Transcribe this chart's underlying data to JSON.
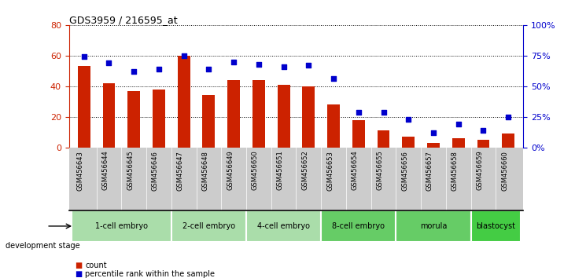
{
  "title": "GDS3959 / 216595_at",
  "categories": [
    "GSM456643",
    "GSM456644",
    "GSM456645",
    "GSM456646",
    "GSM456647",
    "GSM456648",
    "GSM456649",
    "GSM456650",
    "GSM456651",
    "GSM456652",
    "GSM456653",
    "GSM456654",
    "GSM456655",
    "GSM456656",
    "GSM456657",
    "GSM456658",
    "GSM456659",
    "GSM456660"
  ],
  "bar_values": [
    53,
    42,
    37,
    38,
    60,
    34,
    44,
    44,
    41,
    40,
    28,
    18,
    11,
    7,
    3,
    6,
    5,
    9
  ],
  "dot_values_pct": [
    74,
    69,
    62,
    64,
    75,
    64,
    70,
    68,
    66,
    67,
    56,
    29,
    29,
    23,
    12,
    19,
    14,
    25
  ],
  "ylim_left": [
    0,
    80
  ],
  "ylim_right": [
    0,
    100
  ],
  "yticks_left": [
    0,
    20,
    40,
    60,
    80
  ],
  "yticks_right": [
    0,
    25,
    50,
    75,
    100
  ],
  "bar_color": "#CC2200",
  "dot_color": "#0000CC",
  "stage_groups": [
    {
      "label": "1-cell embryo",
      "start": 0,
      "end": 3,
      "color": "#AADDAA"
    },
    {
      "label": "2-cell embryo",
      "start": 4,
      "end": 6,
      "color": "#AADDAA"
    },
    {
      "label": "4-cell embryo",
      "start": 7,
      "end": 9,
      "color": "#AADDAA"
    },
    {
      "label": "8-cell embryo",
      "start": 10,
      "end": 12,
      "color": "#66CC66"
    },
    {
      "label": "morula",
      "start": 13,
      "end": 15,
      "color": "#66CC66"
    },
    {
      "label": "blastocyst",
      "start": 16,
      "end": 17,
      "color": "#44CC44"
    }
  ],
  "xlabel_area": "development stage",
  "legend_count_label": "count",
  "legend_pct_label": "percentile rank within the sample",
  "axis_label_color_left": "#CC2200",
  "axis_label_color_right": "#0000CC",
  "background_plot": "#FFFFFF",
  "xtick_bg": "#CCCCCC",
  "bar_width": 0.5,
  "dot_size": 18
}
